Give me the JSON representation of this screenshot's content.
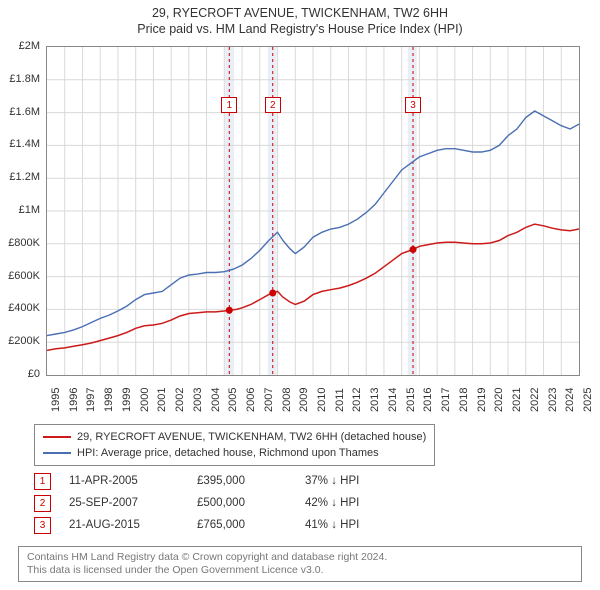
{
  "title_line1": "29, RYECROFT AVENUE, TWICKENHAM, TW2 6HH",
  "title_line2": "Price paid vs. HM Land Registry's House Price Index (HPI)",
  "chart": {
    "type": "line",
    "background_color": "#ffffff",
    "grid_color": "#d9d9d9",
    "axis_color": "#888888",
    "x_start_year": 1995,
    "x_end_year": 2025,
    "xtick_step_years": 1,
    "ylim": [
      0,
      2000000
    ],
    "ytick_step": 200000,
    "yticks": [
      "£0",
      "£200K",
      "£400K",
      "£600K",
      "£800K",
      "£1M",
      "£1.2M",
      "£1.4M",
      "£1.6M",
      "£1.8M",
      "£2M"
    ],
    "highlight_bands": [
      {
        "start_year": 2005.05,
        "end_year": 2005.55,
        "color": "#e9eef7"
      },
      {
        "start_year": 2007.45,
        "end_year": 2007.95,
        "color": "#e9eef7"
      },
      {
        "start_year": 2015.35,
        "end_year": 2015.85,
        "color": "#e9eef7"
      }
    ],
    "vlines": [
      {
        "year": 2005.28,
        "color": "#cc0000",
        "dash": "3,3"
      },
      {
        "year": 2007.73,
        "color": "#cc0000",
        "dash": "3,3"
      },
      {
        "year": 2015.64,
        "color": "#cc0000",
        "dash": "3,3"
      }
    ],
    "markers": [
      {
        "n": "1",
        "year": 2005.28,
        "price": 395000,
        "color": "#cc0000"
      },
      {
        "n": "2",
        "year": 2007.73,
        "price": 500000,
        "color": "#cc0000"
      },
      {
        "n": "3",
        "year": 2015.64,
        "price": 765000,
        "color": "#cc0000"
      }
    ],
    "marker_label_y_value": 1650000,
    "series": [
      {
        "name": "price_paid",
        "color": "#cc1a1a",
        "width": 1.5,
        "label": "29, RYECROFT AVENUE, TWICKENHAM, TW2 6HH (detached house)",
        "points": [
          [
            1995.0,
            150000
          ],
          [
            1995.5,
            160000
          ],
          [
            1996.0,
            165000
          ],
          [
            1996.5,
            175000
          ],
          [
            1997.0,
            185000
          ],
          [
            1997.5,
            195000
          ],
          [
            1998.0,
            210000
          ],
          [
            1998.5,
            225000
          ],
          [
            1999.0,
            240000
          ],
          [
            1999.5,
            260000
          ],
          [
            2000.0,
            285000
          ],
          [
            2000.5,
            300000
          ],
          [
            2001.0,
            305000
          ],
          [
            2001.5,
            315000
          ],
          [
            2002.0,
            335000
          ],
          [
            2002.5,
            360000
          ],
          [
            2003.0,
            375000
          ],
          [
            2003.5,
            380000
          ],
          [
            2004.0,
            385000
          ],
          [
            2004.5,
            385000
          ],
          [
            2005.0,
            390000
          ],
          [
            2005.28,
            395000
          ],
          [
            2005.7,
            400000
          ],
          [
            2006.0,
            410000
          ],
          [
            2006.5,
            430000
          ],
          [
            2007.0,
            460000
          ],
          [
            2007.5,
            490000
          ],
          [
            2007.73,
            500000
          ],
          [
            2008.0,
            510000
          ],
          [
            2008.3,
            475000
          ],
          [
            2008.7,
            445000
          ],
          [
            2009.0,
            430000
          ],
          [
            2009.5,
            450000
          ],
          [
            2010.0,
            490000
          ],
          [
            2010.5,
            510000
          ],
          [
            2011.0,
            520000
          ],
          [
            2011.5,
            530000
          ],
          [
            2012.0,
            545000
          ],
          [
            2012.5,
            565000
          ],
          [
            2013.0,
            590000
          ],
          [
            2013.5,
            620000
          ],
          [
            2014.0,
            660000
          ],
          [
            2014.5,
            700000
          ],
          [
            2015.0,
            740000
          ],
          [
            2015.64,
            765000
          ],
          [
            2016.0,
            785000
          ],
          [
            2016.5,
            795000
          ],
          [
            2017.0,
            805000
          ],
          [
            2017.5,
            810000
          ],
          [
            2018.0,
            810000
          ],
          [
            2018.5,
            805000
          ],
          [
            2019.0,
            800000
          ],
          [
            2019.5,
            800000
          ],
          [
            2020.0,
            805000
          ],
          [
            2020.5,
            820000
          ],
          [
            2021.0,
            850000
          ],
          [
            2021.5,
            870000
          ],
          [
            2022.0,
            900000
          ],
          [
            2022.5,
            920000
          ],
          [
            2023.0,
            910000
          ],
          [
            2023.5,
            895000
          ],
          [
            2024.0,
            885000
          ],
          [
            2024.5,
            880000
          ],
          [
            2025.0,
            890000
          ]
        ]
      },
      {
        "name": "hpi",
        "color": "#4a6fb3",
        "width": 1.4,
        "label": "HPI: Average price, detached house, Richmond upon Thames",
        "points": [
          [
            1995.0,
            240000
          ],
          [
            1995.5,
            250000
          ],
          [
            1996.0,
            260000
          ],
          [
            1996.5,
            275000
          ],
          [
            1997.0,
            295000
          ],
          [
            1997.5,
            320000
          ],
          [
            1998.0,
            345000
          ],
          [
            1998.5,
            365000
          ],
          [
            1999.0,
            390000
          ],
          [
            1999.5,
            420000
          ],
          [
            2000.0,
            460000
          ],
          [
            2000.5,
            490000
          ],
          [
            2001.0,
            500000
          ],
          [
            2001.5,
            510000
          ],
          [
            2002.0,
            550000
          ],
          [
            2002.5,
            590000
          ],
          [
            2003.0,
            610000
          ],
          [
            2003.5,
            615000
          ],
          [
            2004.0,
            625000
          ],
          [
            2004.5,
            625000
          ],
          [
            2005.0,
            630000
          ],
          [
            2005.5,
            645000
          ],
          [
            2006.0,
            670000
          ],
          [
            2006.5,
            710000
          ],
          [
            2007.0,
            760000
          ],
          [
            2007.5,
            820000
          ],
          [
            2008.0,
            870000
          ],
          [
            2008.3,
            820000
          ],
          [
            2008.7,
            770000
          ],
          [
            2009.0,
            740000
          ],
          [
            2009.5,
            780000
          ],
          [
            2010.0,
            840000
          ],
          [
            2010.5,
            870000
          ],
          [
            2011.0,
            890000
          ],
          [
            2011.5,
            900000
          ],
          [
            2012.0,
            920000
          ],
          [
            2012.5,
            950000
          ],
          [
            2013.0,
            990000
          ],
          [
            2013.5,
            1040000
          ],
          [
            2014.0,
            1110000
          ],
          [
            2014.5,
            1180000
          ],
          [
            2015.0,
            1250000
          ],
          [
            2015.5,
            1290000
          ],
          [
            2016.0,
            1330000
          ],
          [
            2016.5,
            1350000
          ],
          [
            2017.0,
            1370000
          ],
          [
            2017.5,
            1380000
          ],
          [
            2018.0,
            1380000
          ],
          [
            2018.5,
            1370000
          ],
          [
            2019.0,
            1360000
          ],
          [
            2019.5,
            1360000
          ],
          [
            2020.0,
            1370000
          ],
          [
            2020.5,
            1400000
          ],
          [
            2021.0,
            1460000
          ],
          [
            2021.5,
            1500000
          ],
          [
            2022.0,
            1570000
          ],
          [
            2022.5,
            1610000
          ],
          [
            2023.0,
            1580000
          ],
          [
            2023.5,
            1550000
          ],
          [
            2024.0,
            1520000
          ],
          [
            2024.5,
            1500000
          ],
          [
            2025.0,
            1530000
          ]
        ]
      }
    ]
  },
  "legend": {
    "rows": [
      {
        "color": "#cc1a1a",
        "label": "29, RYECROFT AVENUE, TWICKENHAM, TW2 6HH (detached house)"
      },
      {
        "color": "#4a6fb3",
        "label": "HPI: Average price, detached house, Richmond upon Thames"
      }
    ]
  },
  "sales": [
    {
      "n": "1",
      "date": "11-APR-2005",
      "price": "£395,000",
      "diff": "37% ↓ HPI",
      "color": "#cc0000"
    },
    {
      "n": "2",
      "date": "25-SEP-2007",
      "price": "£500,000",
      "diff": "42% ↓ HPI",
      "color": "#cc0000"
    },
    {
      "n": "3",
      "date": "21-AUG-2015",
      "price": "£765,000",
      "diff": "41% ↓ HPI",
      "color": "#cc0000"
    }
  ],
  "footer_line1": "Contains HM Land Registry data © Crown copyright and database right 2024.",
  "footer_line2": "This data is licensed under the Open Government Licence v3.0."
}
